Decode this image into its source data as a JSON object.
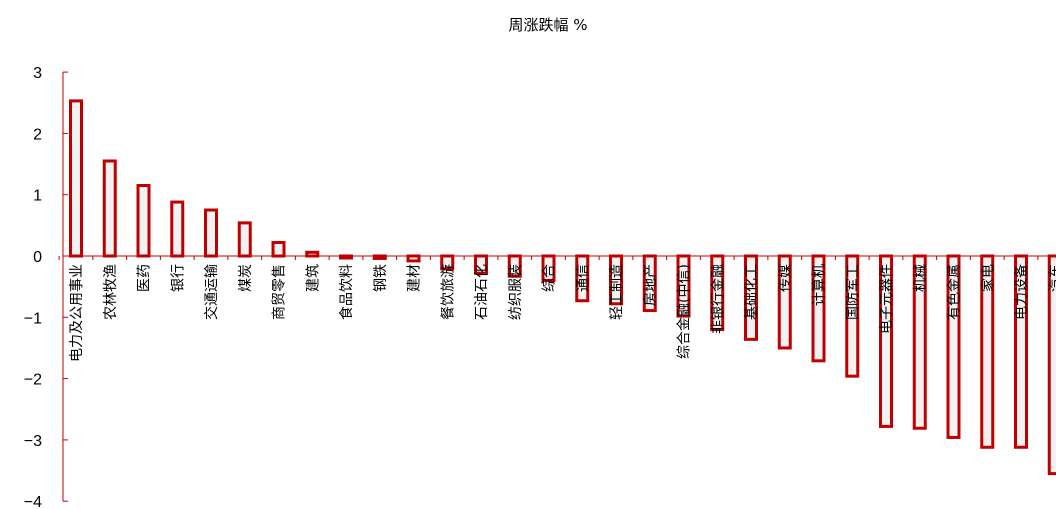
{
  "chart_data": {
    "type": "bar",
    "title": "周涨跌幅 %",
    "xlabel": "",
    "ylabel": "",
    "ylim": [
      -4,
      3
    ],
    "yticks": [
      -4,
      -3,
      -2,
      -1,
      0,
      1,
      2,
      3
    ],
    "ytick_labels": [
      "−4",
      "−3",
      "−2",
      "−1",
      "0",
      "1",
      "2",
      "3"
    ],
    "grid": false,
    "legend": "none",
    "colors": {
      "bar_stroke": "#c00000",
      "bar_fill": "#f2f2f2",
      "axis": "#c00000"
    },
    "categories": [
      "电力及公用事业",
      "农林牧渔",
      "医药",
      "银行",
      "交通运输",
      "煤炭",
      "商贸零售",
      "建筑",
      "食品饮料",
      "钢铁",
      "建材",
      "餐饮旅游",
      "石油石化",
      "纺织服装",
      "综合",
      "通信",
      "轻工制造",
      "房地产",
      "综合金融(中信)",
      "非银行金融",
      "基础化工",
      "传媒",
      "计算机",
      "国防军工",
      "电子元器件",
      "机械",
      "有色金属",
      "家电",
      "电力设备",
      "汽车"
    ],
    "values": [
      2.53,
      1.55,
      1.15,
      0.88,
      0.75,
      0.54,
      0.22,
      0.06,
      -0.03,
      -0.04,
      -0.08,
      -0.21,
      -0.28,
      -0.33,
      -0.4,
      -0.73,
      -0.78,
      -0.89,
      -0.98,
      -1.2,
      -1.36,
      -1.5,
      -1.71,
      -1.96,
      -2.78,
      -2.81,
      -2.96,
      -3.12,
      -3.12,
      -3.55
    ]
  }
}
